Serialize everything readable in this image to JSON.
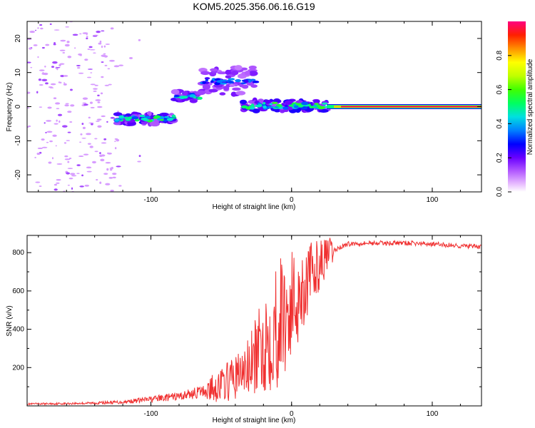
{
  "title": "KOM5.2025.356.06.16.G19",
  "chart_data": [
    {
      "type": "heatmap",
      "title": "KOM5.2025.356.06.16.G19",
      "xlabel": "Height of straight line (km)",
      "ylabel": "Frequency (Hz)",
      "xlim": [
        -188,
        135
      ],
      "ylim": [
        -25,
        25
      ],
      "x_ticks": [
        -100,
        0,
        100
      ],
      "x_tick_labels": [
        "-100",
        "0",
        "100"
      ],
      "y_ticks": [
        -20,
        -10,
        0,
        10,
        20
      ],
      "y_tick_labels": [
        "-20",
        "-10",
        "0",
        "10",
        "20"
      ],
      "colorbar": {
        "label": "Normalized spectral amplitude",
        "range": [
          0,
          1
        ],
        "ticks": [
          0.0,
          0.2,
          0.4,
          0.6,
          0.8
        ],
        "tick_labels": [
          "0.0",
          "0.2",
          "0.4",
          "0.6",
          "0.8"
        ],
        "colormap": "rainbow"
      },
      "features": [
        {
          "name": "noise scatter",
          "x_range": [
            -188,
            -125
          ],
          "freq_range": [
            -25,
            25
          ],
          "amplitude": 0.12
        },
        {
          "name": "band-1",
          "x_range": [
            -125,
            -83
          ],
          "freq_center": -3.5,
          "amplitude": 0.45
        },
        {
          "name": "band-2",
          "x_range": [
            -83,
            -65
          ],
          "freq_center": 3.0,
          "amplitude": 0.4
        },
        {
          "name": "band-3",
          "x_range": [
            -65,
            -25
          ],
          "freq_center": 7.5,
          "amplitude": 0.3
        },
        {
          "name": "band-4",
          "x_range": [
            -35,
            25
          ],
          "freq_center": 0.3,
          "amplitude": 0.45
        },
        {
          "name": "main line",
          "x_range": [
            25,
            135
          ],
          "freq_center": 0.0,
          "amplitude": 1.0
        }
      ]
    },
    {
      "type": "line",
      "xlabel": "Height of straight line (km)",
      "ylabel": "SNR (v/v)",
      "xlim": [
        -188,
        135
      ],
      "ylim": [
        0,
        890
      ],
      "x_ticks": [
        -100,
        0,
        100
      ],
      "x_tick_labels": [
        "-100",
        "0",
        "100"
      ],
      "y_ticks": [
        200,
        400,
        600,
        800
      ],
      "y_tick_labels": [
        "200",
        "400",
        "600",
        "800"
      ],
      "series": [
        {
          "name": "SNR",
          "color": "#f03030",
          "x": [
            -188,
            -160,
            -140,
            -120,
            -100,
            -80,
            -60,
            -50,
            -40,
            -30,
            -25,
            -20,
            -15,
            -10,
            -5,
            0,
            5,
            10,
            15,
            20,
            25,
            30,
            35,
            40,
            50,
            60,
            80,
            100,
            120,
            135
          ],
          "y": [
            10,
            12,
            15,
            20,
            35,
            50,
            80,
            110,
            150,
            200,
            260,
            320,
            380,
            430,
            480,
            520,
            580,
            640,
            690,
            740,
            780,
            810,
            830,
            845,
            850,
            850,
            850,
            845,
            835,
            830
          ]
        }
      ]
    }
  ]
}
